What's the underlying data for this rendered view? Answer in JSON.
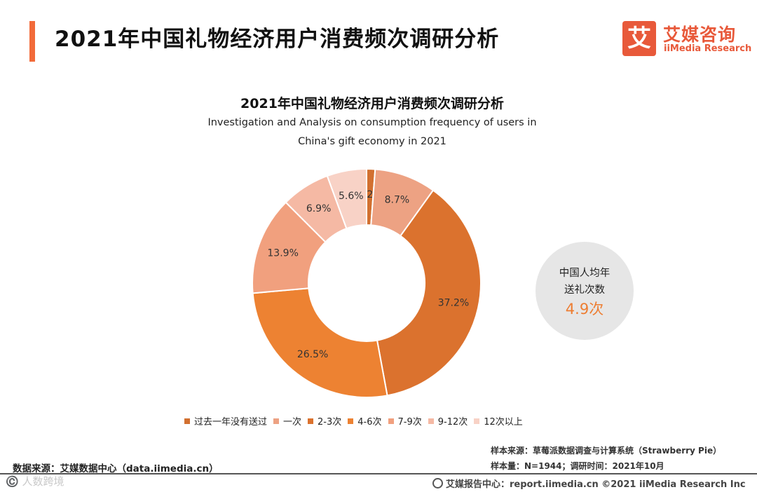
{
  "header": {
    "title": "2021年中国礼物经济用户消费频次调研分析",
    "accent_color": "#f26b3a"
  },
  "logo": {
    "mark": "艾",
    "name_cn": "艾媒咨询",
    "name_en": "iiMedia Research",
    "color": "#e8593a"
  },
  "chart_data": {
    "type": "donut",
    "title": "2021年中国礼物经济用户消费频次调研分析",
    "subtitle_line1": "Investigation and Analysis on consumption frequency of users in",
    "subtitle_line2": "China's gift economy in 2021",
    "categories": [
      "过去一年没有送过",
      "一次",
      "2-3次",
      "4-6次",
      "7-9次",
      "9-12次",
      "12次以上"
    ],
    "values": [
      1.2,
      8.7,
      37.2,
      26.5,
      13.9,
      6.9,
      5.6
    ],
    "labels": [
      "1.2%",
      "8.7%",
      "37.2%",
      "26.5%",
      "13.9%",
      "6.9%",
      "5.6%"
    ],
    "colors": [
      "#d27030",
      "#eda283",
      "#db722e",
      "#ed8232",
      "#f1a07e",
      "#f5b9a4",
      "#f8d2c6"
    ],
    "unit": "%",
    "legend_position": "bottom"
  },
  "stat": {
    "line1": "中国人均年",
    "line2": "送礼次数",
    "value": "4.9次",
    "value_color": "#ed7d31"
  },
  "notes": {
    "sample_source": "样本来源：草莓派数据调查与计算系统（Strawberry Pie）",
    "sample_size": "样本量：N=1944；调研时间：2021年10月"
  },
  "source": "数据来源：艾媒数据中心（data.iimedia.cn）",
  "watermark": "©️ 人数跨境",
  "footer": "艾媒报告中心：report.iimedia.cn   ©2021  iiMedia Research  Inc"
}
